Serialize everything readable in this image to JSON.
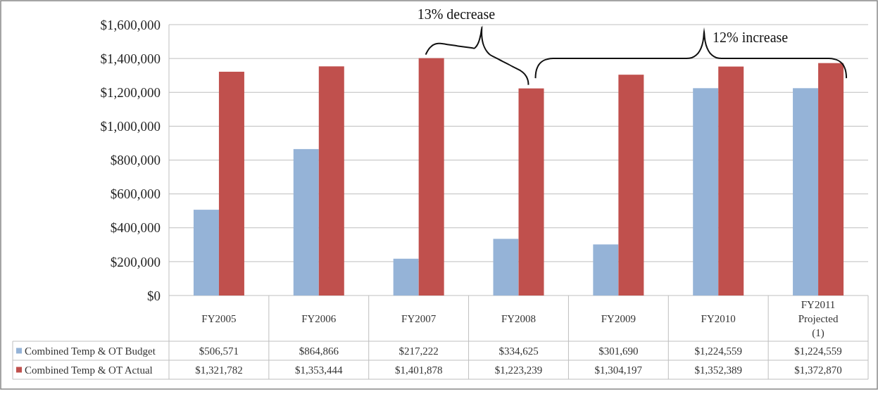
{
  "chart_data": {
    "type": "bar",
    "categories": [
      "FY2005",
      "FY2006",
      "FY2007",
      "FY2008",
      "FY2009",
      "FY2010",
      "FY2011\nProjected\n(1)"
    ],
    "series": [
      {
        "name": "Combined Temp & OT Budget",
        "color": "#95b3d7",
        "values": [
          506571,
          864866,
          217222,
          334625,
          301690,
          1224559,
          1224559
        ],
        "value_labels": [
          "$506,571",
          "$864,866",
          "$217,222",
          "$334,625",
          "$301,690",
          "$1,224,559",
          "$1,224,559"
        ]
      },
      {
        "name": "Combined Temp & OT Actual",
        "color": "#c0504d",
        "values": [
          1321782,
          1353444,
          1401878,
          1223239,
          1304197,
          1352389,
          1372870
        ],
        "value_labels": [
          "$1,321,782",
          "$1,353,444",
          "$1,401,878",
          "$1,223,239",
          "$1,304,197",
          "$1,352,389",
          "$1,372,870"
        ]
      }
    ],
    "ylim": [
      0,
      1600000
    ],
    "yticks": [
      {
        "value": 0,
        "label": "$0"
      },
      {
        "value": 200000,
        "label": "$200,000"
      },
      {
        "value": 400000,
        "label": "$400,000"
      },
      {
        "value": 600000,
        "label": "$600,000"
      },
      {
        "value": 800000,
        "label": "$800,000"
      },
      {
        "value": 1000000,
        "label": "$1,000,000"
      },
      {
        "value": 1200000,
        "label": "$1,200,000"
      },
      {
        "value": 1400000,
        "label": "$1,400,000"
      },
      {
        "value": 1600000,
        "label": "$1,600,000"
      }
    ],
    "grid": "y",
    "legend": "bottom",
    "annotations": [
      "13% decrease",
      "12% increase"
    ]
  }
}
